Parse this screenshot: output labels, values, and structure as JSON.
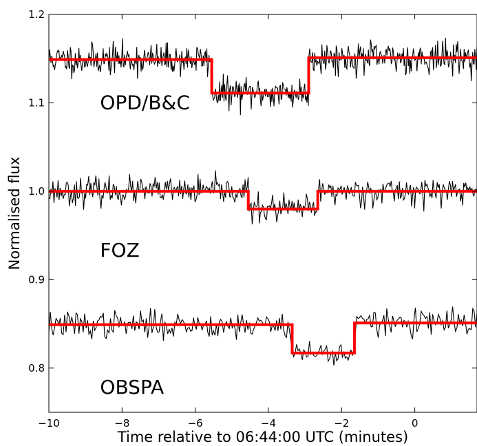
{
  "chart_data": {
    "type": "line",
    "title": "",
    "xlabel": "Time relative to 06:44:00 UTC (minutes)",
    "ylabel": "Normalised flux",
    "xlim": [
      -10,
      1.7
    ],
    "ylim": [
      0.75,
      1.2
    ],
    "xticks": [
      -10,
      -8,
      -6,
      -4,
      -2,
      0
    ],
    "xtick_labels": [
      "−10",
      "−8",
      "−6",
      "−4",
      "−2",
      "0"
    ],
    "yticks": [
      0.8,
      0.9,
      1.0,
      1.1,
      1.2
    ],
    "ytick_labels": [
      "0.8",
      "0.9",
      "1.0",
      "1.1",
      "1.2"
    ],
    "grid": false,
    "colors": {
      "data": "#000000",
      "model": "#ff0000"
    },
    "series": [
      {
        "label": "OPD/B&C",
        "label_pos": [
          -8.6,
          1.093
        ],
        "noise_amp": 0.016,
        "seed": 11,
        "npts": 600,
        "model_x": [
          -10,
          -5.55,
          -5.55,
          -2.9,
          -2.9,
          1.7
        ],
        "model_y": [
          1.149,
          1.149,
          1.111,
          1.111,
          1.151,
          1.151
        ]
      },
      {
        "label": "FOZ",
        "label_pos": [
          -8.6,
          0.926
        ],
        "noise_amp": 0.014,
        "seed": 23,
        "npts": 420,
        "model_x": [
          -10,
          -4.55,
          -4.55,
          -2.65,
          -2.65,
          1.7
        ],
        "model_y": [
          1.0,
          1.0,
          0.98,
          0.98,
          1.0,
          1.0
        ]
      },
      {
        "label": "OBSPA",
        "label_pos": [
          -8.6,
          0.771
        ],
        "noise_amp": 0.014,
        "seed": 37,
        "npts": 300,
        "model_x": [
          -10,
          -3.35,
          -3.35,
          -1.65,
          -1.65,
          1.7
        ],
        "model_y": [
          0.849,
          0.849,
          0.817,
          0.817,
          0.851,
          0.851
        ]
      }
    ]
  }
}
